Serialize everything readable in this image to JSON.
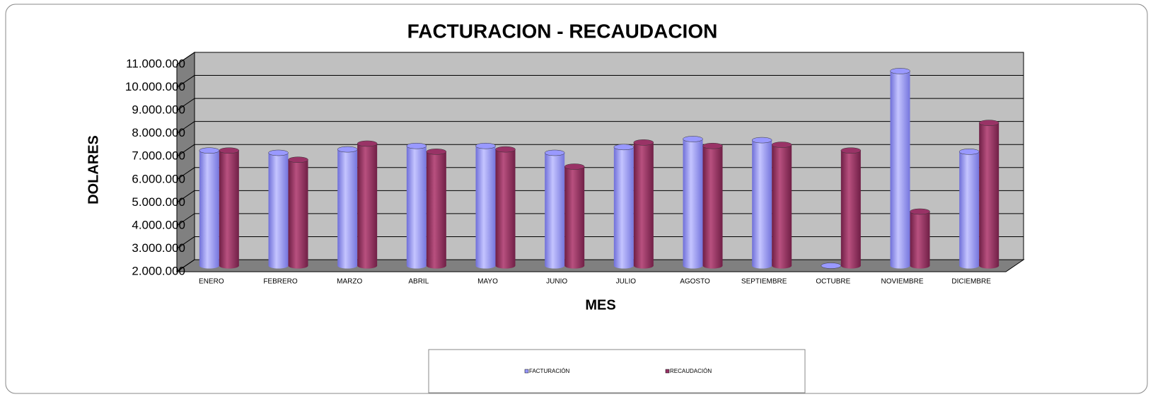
{
  "chart_data": {
    "type": "bar3d",
    "title": "FACTURACION - RECAUDACION",
    "x_label": "MES",
    "y_label": "DOLARES",
    "categories": [
      "ENERO",
      "FEBRERO",
      "MARZO",
      "ABRIL",
      "MAYO",
      "JUNIO",
      "JULIO",
      "AGOSTO",
      "SEPTIEMBRE",
      "OCTUBRE",
      "NOVIEMBRE",
      "DICIEMBRE"
    ],
    "series": [
      {
        "name": "FACTURACIÓN",
        "color": "#9999ff",
        "values": [
          7000000,
          6900000,
          7050000,
          7200000,
          7200000,
          6900000,
          7150000,
          7500000,
          7450000,
          2000000,
          10450000,
          6950000
        ]
      },
      {
        "name": "RECAUDACIÓN",
        "color": "#993366",
        "values": [
          7000000,
          6600000,
          7300000,
          6950000,
          7050000,
          6300000,
          7350000,
          7200000,
          7250000,
          7000000,
          4350000,
          8200000
        ]
      }
    ],
    "ylim": [
      2000000,
      11000000
    ],
    "yticks": [
      {
        "value": 2000000,
        "label": "2.000.000"
      },
      {
        "value": 3000000,
        "label": "3.000.000"
      },
      {
        "value": 4000000,
        "label": "4.000.000"
      },
      {
        "value": 5000000,
        "label": "5.000.000"
      },
      {
        "value": 6000000,
        "label": "6.000.000"
      },
      {
        "value": 7000000,
        "label": "7.000.000"
      },
      {
        "value": 8000000,
        "label": "8.000.000"
      },
      {
        "value": 9000000,
        "label": "9.000.000"
      },
      {
        "value": 10000000,
        "label": "10.000.000"
      },
      {
        "value": 11000000,
        "label": "11.000.000"
      }
    ],
    "grid": true,
    "legend": "bottom"
  }
}
